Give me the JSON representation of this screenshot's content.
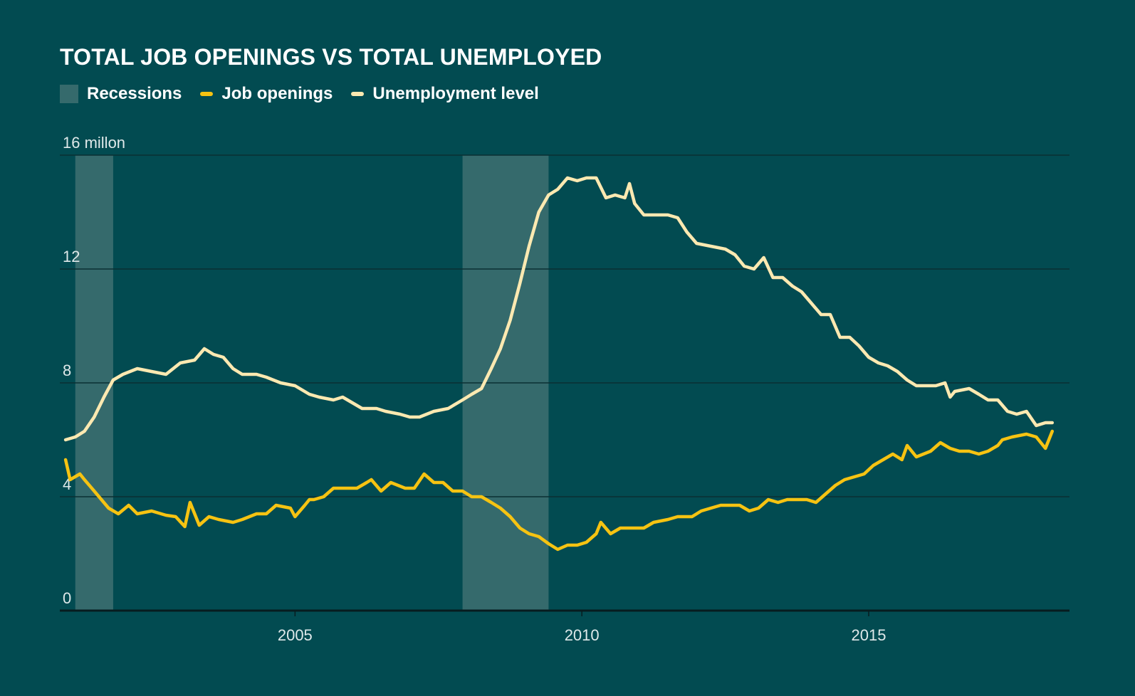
{
  "title": "TOTAL JOB OPENINGS VS TOTAL UNEMPLOYED",
  "legend": {
    "recessions": "Recessions",
    "job_openings": "Job openings",
    "unemployment": "Unemployment level"
  },
  "colors": {
    "background": "#024b51",
    "recession": "#356a6c",
    "job_openings": "#f6c312",
    "unemployment": "#fde9b1",
    "gridline": "#0b2f33",
    "axis": "#071c1f"
  },
  "chart_data": {
    "type": "line",
    "title": "TOTAL JOB OPENINGS VS TOTAL UNEMPLOYED",
    "y_unit_label": "16 millon",
    "ylim": [
      0,
      16
    ],
    "yticks": [
      0,
      4,
      8,
      12,
      16
    ],
    "ytick_labels": [
      "0",
      "4",
      "8",
      "12",
      "16 millon"
    ],
    "xlim": [
      2000.9,
      2018.5
    ],
    "xticks": [
      2005,
      2010,
      2015
    ],
    "xtick_labels": [
      "2005",
      "2010",
      "2015"
    ],
    "grid": true,
    "legend_position": "top-left",
    "recessions": [
      {
        "start": 2001.17,
        "end": 2001.83
      },
      {
        "start": 2007.92,
        "end": 2009.42
      }
    ],
    "series": [
      {
        "name": "Job openings",
        "points": [
          [
            2001.0,
            5.3
          ],
          [
            2001.08,
            4.6
          ],
          [
            2001.25,
            4.8
          ],
          [
            2001.33,
            4.6
          ],
          [
            2001.5,
            4.2
          ],
          [
            2001.75,
            3.6
          ],
          [
            2001.92,
            3.4
          ],
          [
            2002.1,
            3.7
          ],
          [
            2002.25,
            3.4
          ],
          [
            2002.5,
            3.5
          ],
          [
            2002.75,
            3.35
          ],
          [
            2002.92,
            3.3
          ],
          [
            2003.08,
            2.95
          ],
          [
            2003.17,
            3.8
          ],
          [
            2003.33,
            3.0
          ],
          [
            2003.5,
            3.3
          ],
          [
            2003.67,
            3.2
          ],
          [
            2003.92,
            3.1
          ],
          [
            2004.08,
            3.2
          ],
          [
            2004.33,
            3.4
          ],
          [
            2004.5,
            3.4
          ],
          [
            2004.67,
            3.7
          ],
          [
            2004.92,
            3.6
          ],
          [
            2005.0,
            3.3
          ],
          [
            2005.17,
            3.7
          ],
          [
            2005.25,
            3.9
          ],
          [
            2005.33,
            3.9
          ],
          [
            2005.5,
            4.0
          ],
          [
            2005.67,
            4.3
          ],
          [
            2005.92,
            4.3
          ],
          [
            2006.08,
            4.3
          ],
          [
            2006.25,
            4.5
          ],
          [
            2006.33,
            4.6
          ],
          [
            2006.5,
            4.2
          ],
          [
            2006.67,
            4.5
          ],
          [
            2006.92,
            4.3
          ],
          [
            2007.08,
            4.3
          ],
          [
            2007.25,
            4.8
          ],
          [
            2007.42,
            4.5
          ],
          [
            2007.58,
            4.5
          ],
          [
            2007.75,
            4.2
          ],
          [
            2007.92,
            4.2
          ],
          [
            2008.08,
            4.0
          ],
          [
            2008.25,
            4.0
          ],
          [
            2008.42,
            3.8
          ],
          [
            2008.58,
            3.6
          ],
          [
            2008.75,
            3.3
          ],
          [
            2008.92,
            2.9
          ],
          [
            2009.08,
            2.7
          ],
          [
            2009.25,
            2.6
          ],
          [
            2009.42,
            2.35
          ],
          [
            2009.58,
            2.15
          ],
          [
            2009.75,
            2.3
          ],
          [
            2009.92,
            2.3
          ],
          [
            2010.08,
            2.4
          ],
          [
            2010.25,
            2.7
          ],
          [
            2010.33,
            3.1
          ],
          [
            2010.5,
            2.7
          ],
          [
            2010.67,
            2.9
          ],
          [
            2010.92,
            2.9
          ],
          [
            2011.08,
            2.9
          ],
          [
            2011.25,
            3.1
          ],
          [
            2011.5,
            3.2
          ],
          [
            2011.67,
            3.3
          ],
          [
            2011.92,
            3.3
          ],
          [
            2012.08,
            3.5
          ],
          [
            2012.25,
            3.6
          ],
          [
            2012.42,
            3.7
          ],
          [
            2012.58,
            3.7
          ],
          [
            2012.75,
            3.7
          ],
          [
            2012.92,
            3.5
          ],
          [
            2013.08,
            3.6
          ],
          [
            2013.25,
            3.9
          ],
          [
            2013.42,
            3.8
          ],
          [
            2013.58,
            3.9
          ],
          [
            2013.75,
            3.9
          ],
          [
            2013.92,
            3.9
          ],
          [
            2014.08,
            3.8
          ],
          [
            2014.25,
            4.1
          ],
          [
            2014.42,
            4.4
          ],
          [
            2014.58,
            4.6
          ],
          [
            2014.75,
            4.7
          ],
          [
            2014.92,
            4.8
          ],
          [
            2015.08,
            5.1
          ],
          [
            2015.25,
            5.3
          ],
          [
            2015.42,
            5.5
          ],
          [
            2015.58,
            5.3
          ],
          [
            2015.67,
            5.8
          ],
          [
            2015.83,
            5.4
          ],
          [
            2016.08,
            5.6
          ],
          [
            2016.25,
            5.9
          ],
          [
            2016.42,
            5.7
          ],
          [
            2016.58,
            5.6
          ],
          [
            2016.75,
            5.6
          ],
          [
            2016.92,
            5.5
          ],
          [
            2017.08,
            5.6
          ],
          [
            2017.25,
            5.8
          ],
          [
            2017.33,
            6.0
          ],
          [
            2017.5,
            6.1
          ],
          [
            2017.75,
            6.2
          ],
          [
            2017.92,
            6.1
          ],
          [
            2018.08,
            5.7
          ],
          [
            2018.2,
            6.3
          ]
        ]
      },
      {
        "name": "Unemployment level",
        "points": [
          [
            2001.0,
            6.0
          ],
          [
            2001.17,
            6.1
          ],
          [
            2001.33,
            6.3
          ],
          [
            2001.5,
            6.8
          ],
          [
            2001.67,
            7.5
          ],
          [
            2001.83,
            8.1
          ],
          [
            2002.0,
            8.3
          ],
          [
            2002.25,
            8.5
          ],
          [
            2002.5,
            8.4
          ],
          [
            2002.75,
            8.3
          ],
          [
            2003.0,
            8.7
          ],
          [
            2003.25,
            8.8
          ],
          [
            2003.42,
            9.2
          ],
          [
            2003.58,
            9.0
          ],
          [
            2003.75,
            8.9
          ],
          [
            2003.92,
            8.5
          ],
          [
            2004.08,
            8.3
          ],
          [
            2004.33,
            8.3
          ],
          [
            2004.5,
            8.2
          ],
          [
            2004.75,
            8.0
          ],
          [
            2005.0,
            7.9
          ],
          [
            2005.25,
            7.6
          ],
          [
            2005.42,
            7.5
          ],
          [
            2005.67,
            7.4
          ],
          [
            2005.83,
            7.5
          ],
          [
            2006.0,
            7.3
          ],
          [
            2006.17,
            7.1
          ],
          [
            2006.42,
            7.1
          ],
          [
            2006.58,
            7.0
          ],
          [
            2006.83,
            6.9
          ],
          [
            2007.0,
            6.8
          ],
          [
            2007.17,
            6.8
          ],
          [
            2007.42,
            7.0
          ],
          [
            2007.67,
            7.1
          ],
          [
            2007.92,
            7.4
          ],
          [
            2008.08,
            7.6
          ],
          [
            2008.25,
            7.8
          ],
          [
            2008.42,
            8.5
          ],
          [
            2008.58,
            9.2
          ],
          [
            2008.75,
            10.2
          ],
          [
            2008.92,
            11.5
          ],
          [
            2009.08,
            12.8
          ],
          [
            2009.25,
            14.0
          ],
          [
            2009.42,
            14.6
          ],
          [
            2009.58,
            14.8
          ],
          [
            2009.75,
            15.2
          ],
          [
            2009.92,
            15.1
          ],
          [
            2010.08,
            15.2
          ],
          [
            2010.25,
            15.2
          ],
          [
            2010.42,
            14.5
          ],
          [
            2010.58,
            14.6
          ],
          [
            2010.75,
            14.5
          ],
          [
            2010.83,
            15.0
          ],
          [
            2010.92,
            14.3
          ],
          [
            2011.08,
            13.9
          ],
          [
            2011.33,
            13.9
          ],
          [
            2011.5,
            13.9
          ],
          [
            2011.67,
            13.8
          ],
          [
            2011.83,
            13.3
          ],
          [
            2012.0,
            12.9
          ],
          [
            2012.25,
            12.8
          ],
          [
            2012.5,
            12.7
          ],
          [
            2012.67,
            12.5
          ],
          [
            2012.83,
            12.1
          ],
          [
            2013.0,
            12.0
          ],
          [
            2013.17,
            12.4
          ],
          [
            2013.33,
            11.7
          ],
          [
            2013.5,
            11.7
          ],
          [
            2013.67,
            11.4
          ],
          [
            2013.83,
            11.2
          ],
          [
            2014.0,
            10.8
          ],
          [
            2014.17,
            10.4
          ],
          [
            2014.33,
            10.4
          ],
          [
            2014.5,
            9.6
          ],
          [
            2014.67,
            9.6
          ],
          [
            2014.83,
            9.3
          ],
          [
            2015.0,
            8.9
          ],
          [
            2015.17,
            8.7
          ],
          [
            2015.33,
            8.6
          ],
          [
            2015.5,
            8.4
          ],
          [
            2015.67,
            8.1
          ],
          [
            2015.83,
            7.9
          ],
          [
            2016.0,
            7.9
          ],
          [
            2016.17,
            7.9
          ],
          [
            2016.33,
            8.0
          ],
          [
            2016.42,
            7.5
          ],
          [
            2016.5,
            7.7
          ],
          [
            2016.75,
            7.8
          ],
          [
            2016.92,
            7.6
          ],
          [
            2017.08,
            7.4
          ],
          [
            2017.25,
            7.4
          ],
          [
            2017.42,
            7.0
          ],
          [
            2017.58,
            6.9
          ],
          [
            2017.75,
            7.0
          ],
          [
            2017.92,
            6.5
          ],
          [
            2018.08,
            6.6
          ],
          [
            2018.2,
            6.6
          ]
        ]
      }
    ]
  }
}
